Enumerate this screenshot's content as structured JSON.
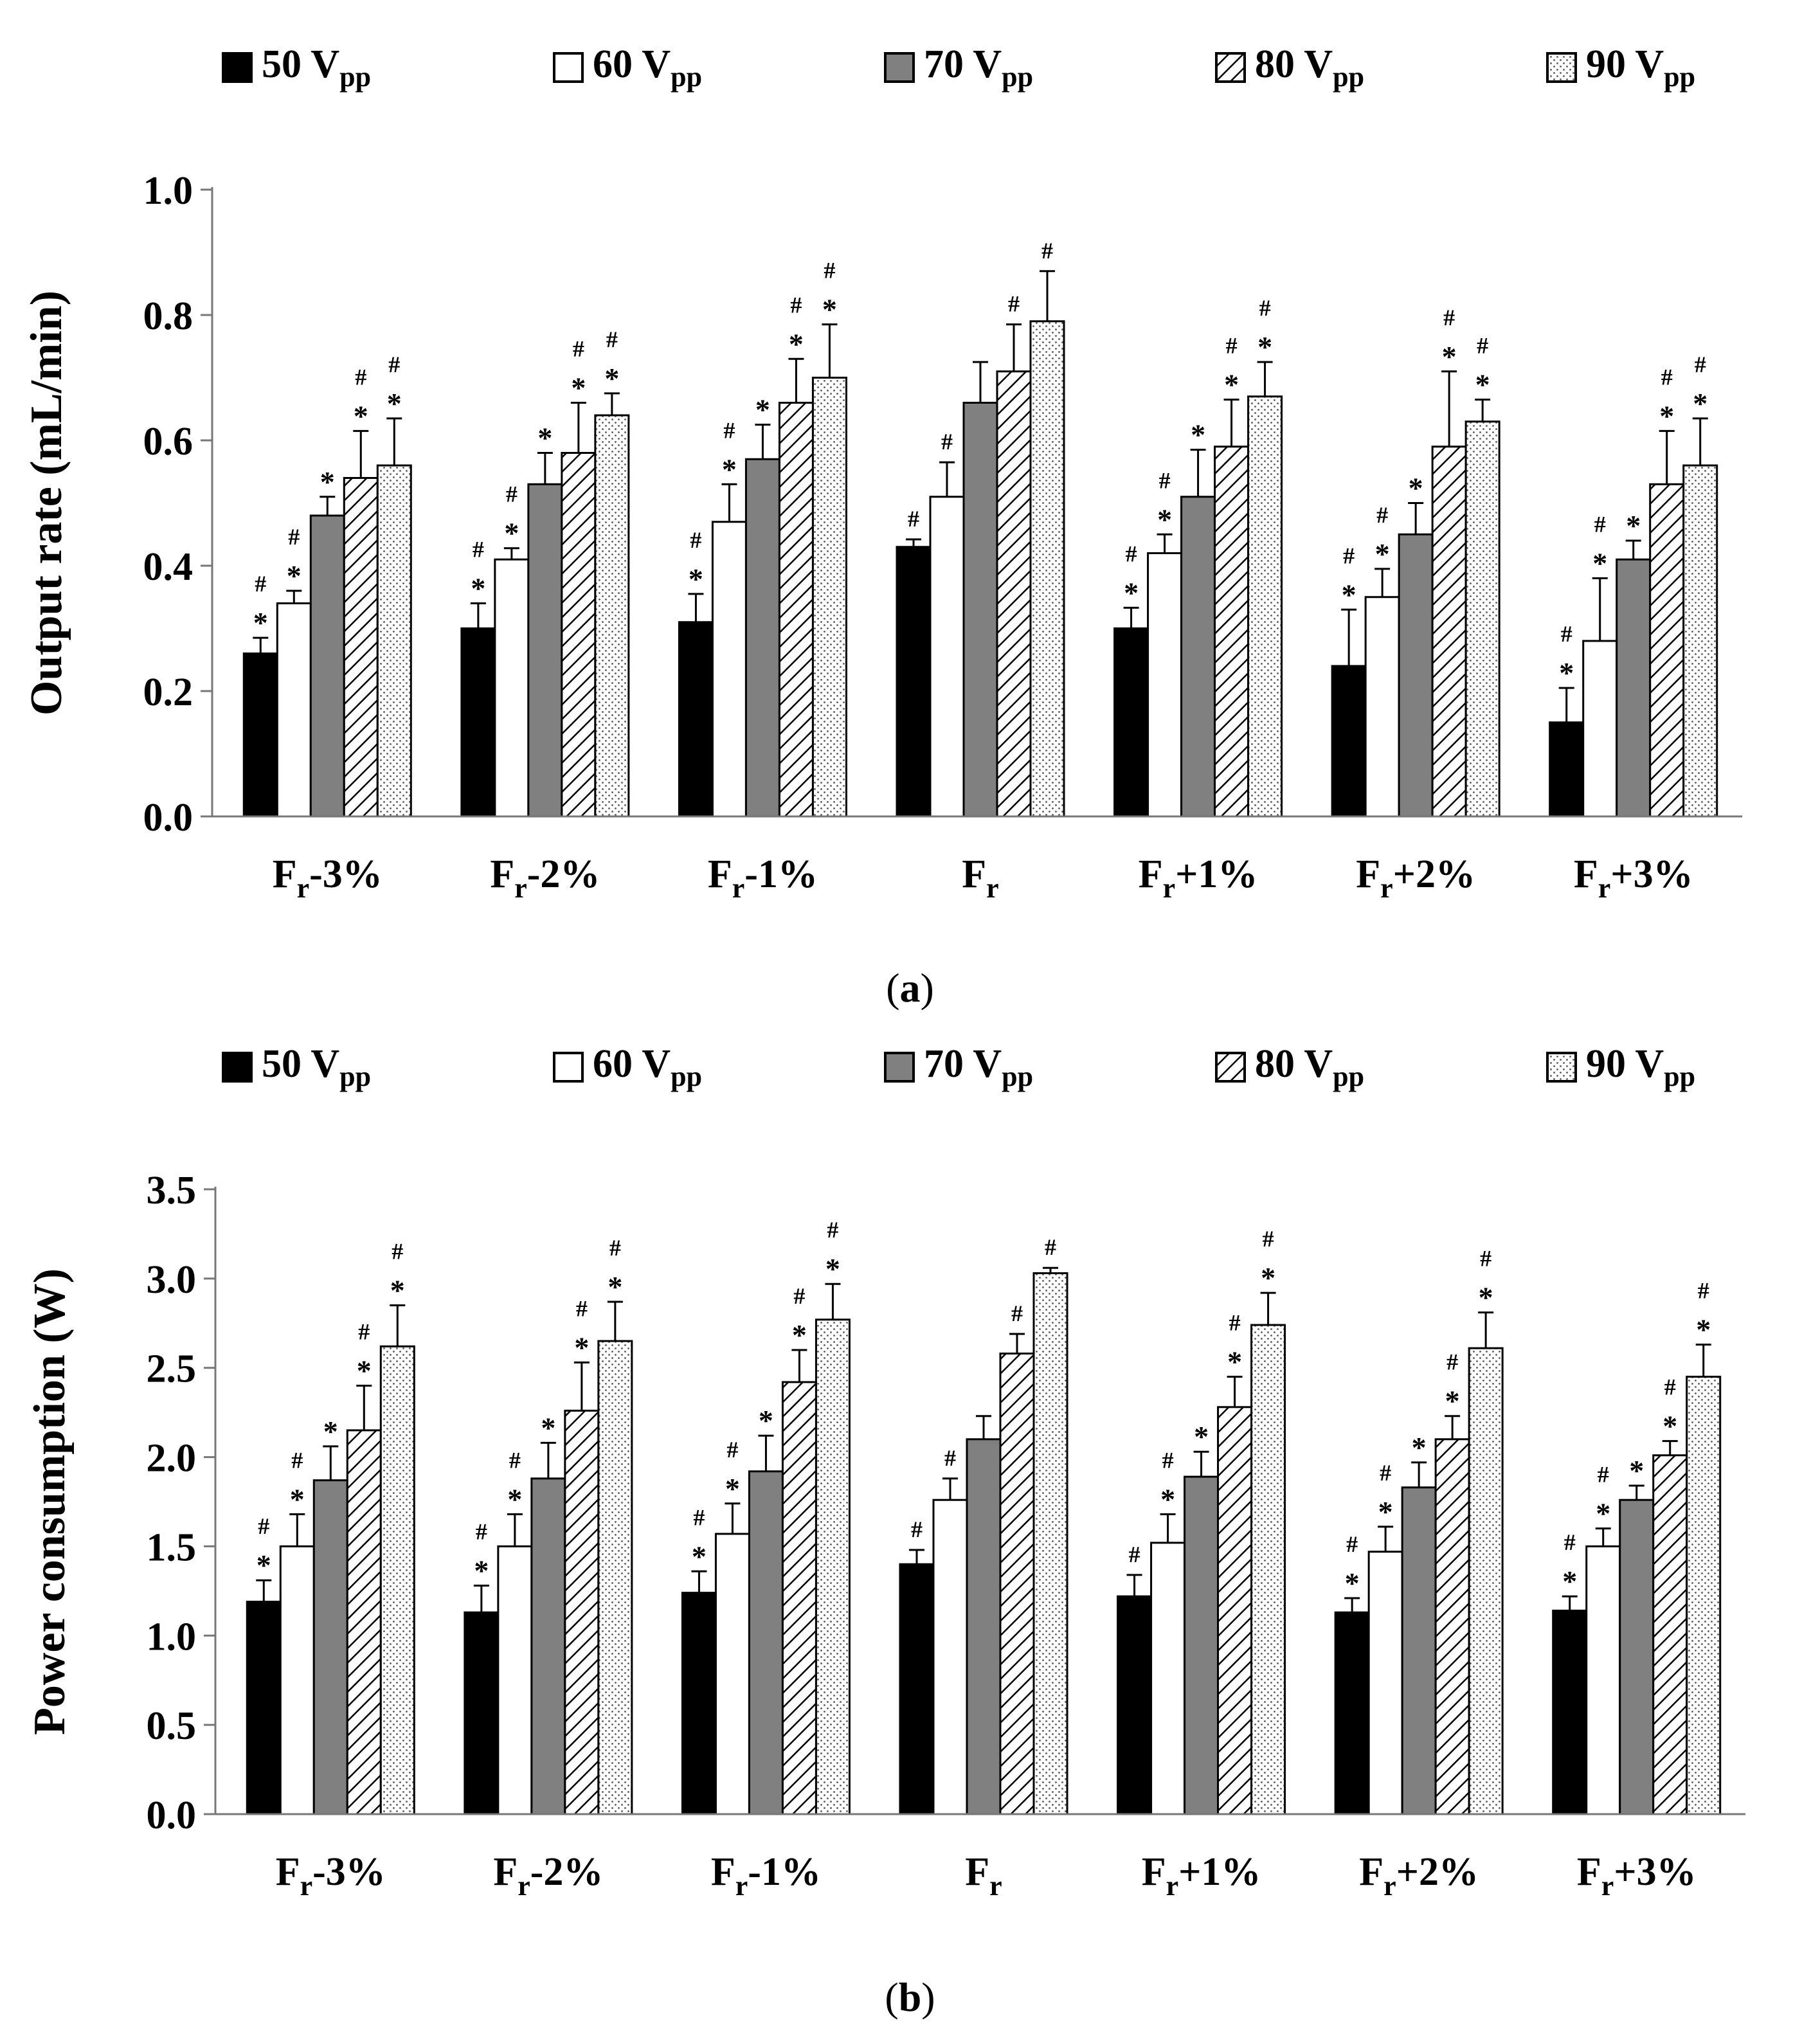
{
  "series_styles": [
    {
      "name": "50 V",
      "unit_sub": "pp",
      "fill": "#000000",
      "pattern": "solid"
    },
    {
      "name": "60 V",
      "unit_sub": "pp",
      "fill": "#ffffff",
      "pattern": "solid"
    },
    {
      "name": "70 V",
      "unit_sub": "pp",
      "fill": "#808080",
      "pattern": "solid"
    },
    {
      "name": "80 V",
      "unit_sub": "pp",
      "fill": "#ffffff",
      "pattern": "hatch"
    },
    {
      "name": "90 V",
      "unit_sub": "pp",
      "fill": "#ffffff",
      "pattern": "dots"
    }
  ],
  "category_parts": [
    {
      "main": "F",
      "sub": "r",
      "suffix": "-3%"
    },
    {
      "main": "F",
      "sub": "r",
      "suffix": "-2%"
    },
    {
      "main": "F",
      "sub": "r",
      "suffix": "-1%"
    },
    {
      "main": "F",
      "sub": "r",
      "suffix": ""
    },
    {
      "main": "F",
      "sub": "r",
      "suffix": "+1%"
    },
    {
      "main": "F",
      "sub": "r",
      "suffix": "+2%"
    },
    {
      "main": "F",
      "sub": "r",
      "suffix": "+3%"
    }
  ],
  "chart_data": [
    {
      "type": "bar",
      "panel": "(a)",
      "panel_letter": "a",
      "categories": [
        "Fr-3%",
        "Fr-2%",
        "Fr-1%",
        "Fr",
        "Fr+1%",
        "Fr+2%",
        "Fr+3%"
      ],
      "ylabel": "Output rate (mL/min)",
      "xlabel": "",
      "ylim": [
        0,
        1.0
      ],
      "yticks": [
        "0.0",
        "0.2",
        "0.4",
        "0.6",
        "0.8",
        "1.0"
      ],
      "grid": false,
      "legend_position": "top",
      "series": [
        {
          "name": "50 Vpp",
          "values": [
            0.26,
            0.3,
            0.31,
            0.43,
            0.3,
            0.24,
            0.15
          ],
          "errors": [
            0.025,
            0.04,
            0.045,
            0.012,
            0.033,
            0.09,
            0.055
          ],
          "marks": [
            "*#",
            "*#",
            "*#",
            "#",
            "*#",
            "*#",
            "*#"
          ]
        },
        {
          "name": "60 Vpp",
          "values": [
            0.34,
            0.41,
            0.47,
            0.51,
            0.42,
            0.35,
            0.28
          ],
          "errors": [
            0.02,
            0.018,
            0.06,
            0.055,
            0.03,
            0.045,
            0.1
          ],
          "marks": [
            "*#",
            "*#",
            "*#",
            "#",
            "*#",
            "*#",
            "*#"
          ]
        },
        {
          "name": "70 Vpp",
          "values": [
            0.48,
            0.53,
            0.57,
            0.66,
            0.51,
            0.45,
            0.41
          ],
          "errors": [
            0.03,
            0.05,
            0.055,
            0.065,
            0.075,
            0.05,
            0.03
          ],
          "marks": [
            "*",
            "*",
            "*",
            "",
            "*",
            "*",
            "*"
          ]
        },
        {
          "name": "80 Vpp",
          "values": [
            0.54,
            0.58,
            0.66,
            0.71,
            0.59,
            0.59,
            0.53
          ],
          "errors": [
            0.075,
            0.08,
            0.07,
            0.075,
            0.075,
            0.12,
            0.085
          ],
          "marks": [
            "*#",
            "*#",
            "*#",
            "#",
            "*#",
            "*#",
            "*#"
          ]
        },
        {
          "name": "90 Vpp",
          "values": [
            0.56,
            0.64,
            0.7,
            0.79,
            0.67,
            0.63,
            0.56
          ],
          "errors": [
            0.075,
            0.035,
            0.085,
            0.08,
            0.055,
            0.035,
            0.075
          ],
          "marks": [
            "*#",
            "*#",
            "*#",
            "#",
            "*#",
            "*#",
            "*#"
          ]
        }
      ]
    },
    {
      "type": "bar",
      "panel": "(b)",
      "panel_letter": "b",
      "categories": [
        "Fr-3%",
        "Fr-2%",
        "Fr-1%",
        "Fr",
        "Fr+1%",
        "Fr+2%",
        "Fr+3%"
      ],
      "ylabel": "Power consumption (W)",
      "xlabel": "",
      "ylim": [
        0,
        3.5
      ],
      "yticks": [
        "0.0",
        "0.5",
        "1.0",
        "1.5",
        "2.0",
        "2.5",
        "3.0",
        "3.5"
      ],
      "grid": false,
      "legend_position": "top",
      "series": [
        {
          "name": "50 Vpp",
          "values": [
            1.19,
            1.13,
            1.24,
            1.4,
            1.22,
            1.13,
            1.14
          ],
          "errors": [
            0.12,
            0.15,
            0.12,
            0.08,
            0.12,
            0.08,
            0.08
          ],
          "marks": [
            "*#",
            "*#",
            "*#",
            "#",
            "#",
            "*#",
            "*#"
          ]
        },
        {
          "name": "60 Vpp",
          "values": [
            1.5,
            1.5,
            1.57,
            1.76,
            1.52,
            1.47,
            1.5
          ],
          "errors": [
            0.18,
            0.18,
            0.17,
            0.12,
            0.16,
            0.14,
            0.1
          ],
          "marks": [
            "*#",
            "*#",
            "*#",
            "#",
            "*#",
            "*#",
            "*#"
          ]
        },
        {
          "name": "70 Vpp",
          "values": [
            1.87,
            1.88,
            1.92,
            2.1,
            1.89,
            1.83,
            1.76
          ],
          "errors": [
            0.19,
            0.2,
            0.2,
            0.13,
            0.14,
            0.14,
            0.08
          ],
          "marks": [
            "*",
            "*",
            "*",
            "",
            "*",
            "*",
            "*"
          ]
        },
        {
          "name": "80 Vpp",
          "values": [
            2.15,
            2.26,
            2.42,
            2.58,
            2.28,
            2.1,
            2.01
          ],
          "errors": [
            0.25,
            0.27,
            0.18,
            0.11,
            0.17,
            0.13,
            0.08
          ],
          "marks": [
            "*#",
            "*#",
            "*#",
            "#",
            "*#",
            "*#",
            "*#"
          ]
        },
        {
          "name": "90 Vpp",
          "values": [
            2.62,
            2.65,
            2.77,
            3.03,
            2.74,
            2.61,
            2.45
          ],
          "errors": [
            0.23,
            0.22,
            0.2,
            0.03,
            0.18,
            0.2,
            0.18
          ],
          "marks": [
            "*#",
            "*#",
            "*#",
            "#",
            "*#",
            "*#",
            "*#"
          ]
        }
      ]
    }
  ]
}
